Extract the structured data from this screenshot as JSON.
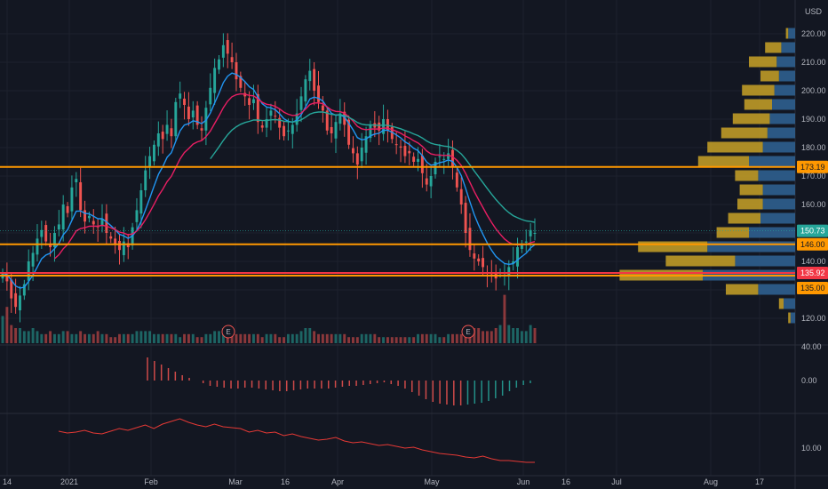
{
  "chart_data": {
    "type": "candlestick",
    "currency_label": "USD",
    "colors": {
      "background": "#131722",
      "grid": "#1e222d",
      "up": "#26a69a",
      "down": "#ef5350",
      "ema_fast": "#2196f3",
      "ema_mid": "#e91e63",
      "ema_slow": "#26a69a",
      "horizontal_line": "#ff9800",
      "support_line": "#f23645",
      "vp_up": "#2f5f8f",
      "vp_down": "#c9a227",
      "rsi_line": "#e53935"
    },
    "price_axis": {
      "range": [
        112,
        222
      ],
      "ticks": [
        120,
        130,
        140,
        150,
        160,
        170,
        180,
        190,
        200,
        210,
        220
      ]
    },
    "time_axis_labels": [
      "14",
      "2021",
      "Feb",
      "Mar",
      "16",
      "Apr",
      "May",
      "Jun",
      "16",
      "Jul",
      "Aug",
      "17"
    ],
    "closes": [
      136,
      133,
      127,
      124,
      128,
      132,
      140,
      143,
      148,
      151,
      147,
      145,
      150,
      153,
      160,
      157,
      166,
      169,
      158,
      154,
      156,
      153,
      152,
      155,
      150,
      148,
      146,
      144,
      147,
      145,
      152,
      158,
      165,
      172,
      177,
      181,
      185,
      183,
      188,
      184,
      196,
      199,
      195,
      190,
      193,
      188,
      186,
      194,
      201,
      208,
      211,
      216,
      213,
      210,
      204,
      201,
      198,
      195,
      197,
      189,
      187,
      190,
      193,
      191,
      187,
      184,
      186,
      188,
      192,
      198,
      204,
      207,
      200,
      196,
      193,
      186,
      185,
      189,
      192,
      188,
      181,
      178,
      174,
      180,
      184,
      188,
      187,
      186,
      190,
      186,
      183,
      181,
      180,
      177,
      178,
      175,
      176,
      171,
      167,
      170,
      175,
      177,
      176,
      178,
      173,
      166,
      160,
      150,
      144,
      141,
      140,
      138,
      136,
      135,
      134,
      136,
      135,
      138,
      140,
      145,
      146,
      147,
      151,
      150
    ],
    "volumes": [
      9,
      12,
      6,
      5,
      5,
      4,
      4,
      5,
      4,
      3,
      3,
      4,
      3,
      3,
      4,
      4,
      3,
      3,
      4,
      3,
      3,
      3,
      4,
      3,
      3,
      2,
      2,
      3,
      3,
      3,
      3,
      4,
      4,
      4,
      4,
      3,
      3,
      3,
      3,
      3,
      3,
      2,
      3,
      3,
      3,
      2,
      2,
      3,
      3,
      4,
      4,
      5,
      4,
      3,
      3,
      3,
      3,
      3,
      3,
      3,
      2,
      3,
      3,
      3,
      2,
      2,
      3,
      3,
      3,
      4,
      5,
      5,
      4,
      3,
      3,
      3,
      3,
      3,
      3,
      3,
      2,
      2,
      2,
      3,
      3,
      3,
      3,
      2,
      2,
      2,
      2,
      2,
      2,
      2,
      2,
      2,
      3,
      3,
      3,
      3,
      3,
      2,
      2,
      3,
      3,
      3,
      3,
      4,
      4,
      5,
      5,
      4,
      4,
      4,
      5,
      6,
      16,
      6,
      5,
      5,
      4,
      4,
      6,
      5
    ],
    "earnings_markers": [
      "E",
      "E"
    ],
    "horizontal_levels": [
      {
        "label": "173.19",
        "value": 173.19
      },
      {
        "label": "146.00",
        "value": 146.0
      },
      {
        "label": "135.92",
        "value": 135.92
      },
      {
        "label": "135.00",
        "value": 135.0
      }
    ],
    "last_price": {
      "label": "150.73",
      "value": 150.73
    },
    "volume_profile": [
      {
        "price": 220,
        "up": 3,
        "down": 1
      },
      {
        "price": 215,
        "up": 6,
        "down": 7
      },
      {
        "price": 210,
        "up": 8,
        "down": 12
      },
      {
        "price": 205,
        "up": 7,
        "down": 8
      },
      {
        "price": 200,
        "up": 9,
        "down": 14
      },
      {
        "price": 195,
        "up": 10,
        "down": 12
      },
      {
        "price": 190,
        "up": 11,
        "down": 16
      },
      {
        "price": 185,
        "up": 12,
        "down": 20
      },
      {
        "price": 180,
        "up": 14,
        "down": 24
      },
      {
        "price": 175,
        "up": 20,
        "down": 22
      },
      {
        "price": 170,
        "up": 16,
        "down": 10
      },
      {
        "price": 165,
        "up": 14,
        "down": 10
      },
      {
        "price": 160,
        "up": 14,
        "down": 11
      },
      {
        "price": 155,
        "up": 15,
        "down": 14
      },
      {
        "price": 150,
        "up": 20,
        "down": 14
      },
      {
        "price": 145,
        "up": 38,
        "down": 30
      },
      {
        "price": 140,
        "up": 26,
        "down": 30
      },
      {
        "price": 135,
        "up": 40,
        "down": 36
      },
      {
        "price": 130,
        "up": 16,
        "down": 14
      },
      {
        "price": 125,
        "up": 5,
        "down": 2
      },
      {
        "price": 120,
        "up": 2,
        "down": 1
      }
    ],
    "volume_axis_label": "40.00",
    "oscillator": {
      "zero_label": "0.00",
      "values": [
        26,
        22,
        18,
        14,
        10,
        6,
        3,
        0,
        -3,
        -6,
        -7,
        -8,
        -9,
        -9,
        -8,
        -8,
        -9,
        -10,
        -11,
        -12,
        -12,
        -11,
        -10,
        -9,
        -9,
        -9,
        -9,
        -8,
        -7,
        -6,
        -6,
        -5,
        -4,
        -3,
        -2,
        -4,
        -6,
        -9,
        -13,
        -17,
        -21,
        -24,
        -26,
        -27,
        -28,
        -28,
        -27,
        -26,
        -25,
        -23,
        -20,
        -17,
        -12,
        -8,
        -5,
        -3
      ]
    },
    "rsi_panel": {
      "axis_label": "10.00",
      "values": [
        63,
        61,
        62,
        64,
        61,
        60,
        63,
        66,
        64,
        67,
        70,
        66,
        71,
        74,
        77,
        73,
        70,
        68,
        71,
        68,
        67,
        66,
        62,
        64,
        61,
        62,
        58,
        60,
        57,
        55,
        53,
        54,
        56,
        52,
        50,
        51,
        49,
        47,
        48,
        46,
        44,
        45,
        42,
        40,
        38,
        37,
        36,
        34,
        33,
        35,
        32,
        30,
        30,
        29,
        28,
        28
      ]
    }
  }
}
